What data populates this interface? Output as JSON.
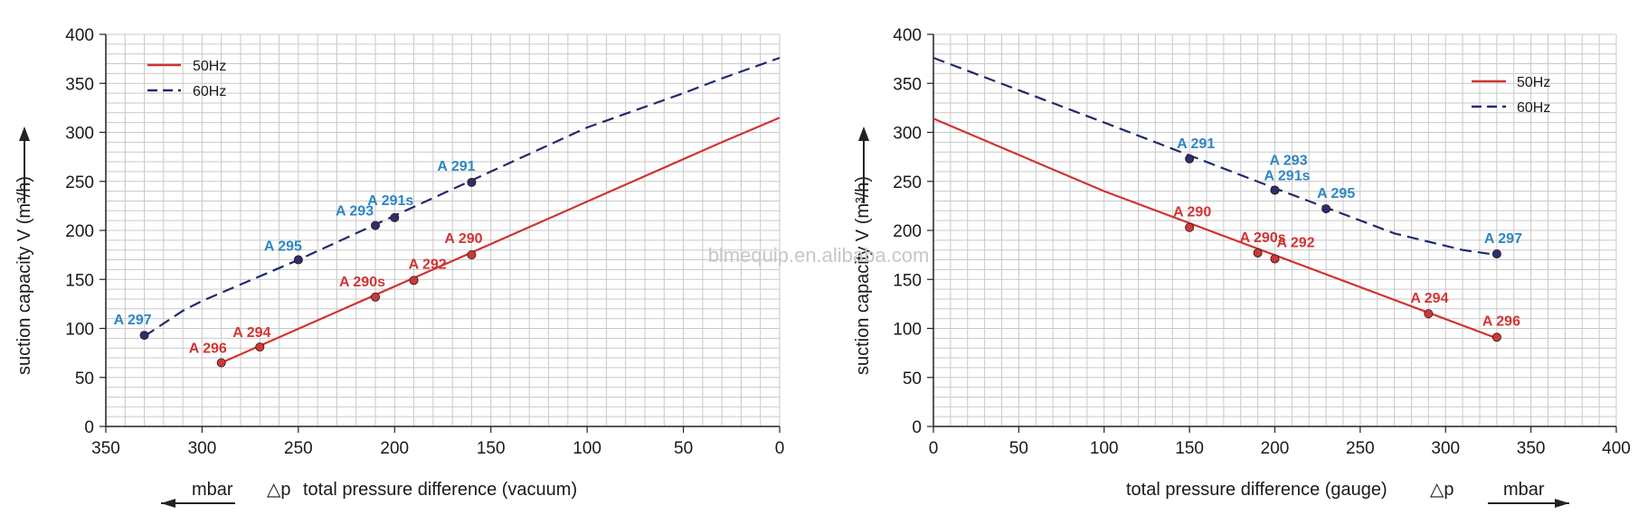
{
  "watermark": "blmequip.en.alibaba.com",
  "colors": {
    "s50": "#d03434",
    "s60": "#1f2a6b",
    "label60": "#2e86c1",
    "label50": "#d03434",
    "grid": "#c9c9c9"
  },
  "chart_data": [
    {
      "type": "line",
      "xlabel": "total pressure difference (vacuum)",
      "xlabel_prefix": "△p",
      "unit_arrow_label": "mbar",
      "ylabel": "suction capacity V (m³/h)",
      "xlim": [
        350,
        0
      ],
      "x_reversed": true,
      "ylim": [
        0,
        400
      ],
      "xticks": [
        350,
        300,
        250,
        200,
        150,
        100,
        50,
        0
      ],
      "yticks": [
        0,
        50,
        100,
        150,
        200,
        250,
        300,
        350,
        400
      ],
      "grid": true,
      "legend_position": "top-left",
      "series": [
        {
          "name": "50Hz",
          "style": "solid",
          "x": [
            290,
            30,
            0
          ],
          "y": [
            65,
            290,
            315
          ]
        },
        {
          "name": "60Hz",
          "style": "dashed",
          "x": [
            330,
            310,
            300,
            250,
            200,
            150,
            100,
            50,
            30,
            0
          ],
          "y": [
            92,
            118,
            128,
            170,
            215,
            260,
            305,
            340,
            355,
            376
          ]
        }
      ],
      "points": [
        {
          "label": "A 296",
          "series": "50Hz",
          "x": 290,
          "y": 65
        },
        {
          "label": "A 294",
          "series": "50Hz",
          "x": 270,
          "y": 81
        },
        {
          "label": "A 290s",
          "series": "50Hz",
          "x": 210,
          "y": 132
        },
        {
          "label": "A 292",
          "series": "50Hz",
          "x": 190,
          "y": 149
        },
        {
          "label": "A 290",
          "series": "50Hz",
          "x": 160,
          "y": 175
        },
        {
          "label": "A 297",
          "series": "60Hz",
          "x": 330,
          "y": 93
        },
        {
          "label": "A 295",
          "series": "60Hz",
          "x": 250,
          "y": 170
        },
        {
          "label": "A 293",
          "series": "60Hz",
          "x": 210,
          "y": 205
        },
        {
          "label": "A 291s",
          "series": "60Hz",
          "x": 200,
          "y": 213
        },
        {
          "label": "A 291",
          "series": "60Hz",
          "x": 160,
          "y": 249
        }
      ]
    },
    {
      "type": "line",
      "xlabel": "total pressure difference (gauge)",
      "xlabel_suffix": "△p",
      "unit_arrow_label": "mbar",
      "ylabel": "suction capacity V (m³/h)",
      "xlim": [
        0,
        400
      ],
      "x_reversed": false,
      "ylim": [
        0,
        400
      ],
      "xticks": [
        0,
        50,
        100,
        150,
        200,
        250,
        300,
        350,
        400
      ],
      "yticks": [
        0,
        50,
        100,
        150,
        200,
        250,
        300,
        350,
        400
      ],
      "grid": true,
      "legend_position": "top-right",
      "series": [
        {
          "name": "50Hz",
          "style": "solid",
          "x": [
            0,
            100,
            330
          ],
          "y": [
            314,
            240,
            90
          ]
        },
        {
          "name": "60Hz",
          "style": "dashed",
          "x": [
            0,
            100,
            200,
            270,
            310,
            330
          ],
          "y": [
            376,
            310,
            243,
            197,
            180,
            175
          ]
        }
      ],
      "points": [
        {
          "label": "A 290",
          "series": "50Hz",
          "x": 150,
          "y": 203
        },
        {
          "label": "A 290s",
          "series": "50Hz",
          "x": 190,
          "y": 177
        },
        {
          "label": "A 292",
          "series": "50Hz",
          "x": 200,
          "y": 171
        },
        {
          "label": "A 294",
          "series": "50Hz",
          "x": 290,
          "y": 115
        },
        {
          "label": "A 296",
          "series": "50Hz",
          "x": 330,
          "y": 91
        },
        {
          "label": "A 291",
          "series": "60Hz",
          "x": 150,
          "y": 273
        },
        {
          "label": "A 293",
          "series": "60Hz",
          "x": 200,
          "y": 241
        },
        {
          "label": "A 291s",
          "series": "60Hz",
          "x": 200,
          "y": 241
        },
        {
          "label": "A 295",
          "series": "60Hz",
          "x": 230,
          "y": 222
        },
        {
          "label": "A 297",
          "series": "60Hz",
          "x": 330,
          "y": 176
        }
      ]
    }
  ]
}
